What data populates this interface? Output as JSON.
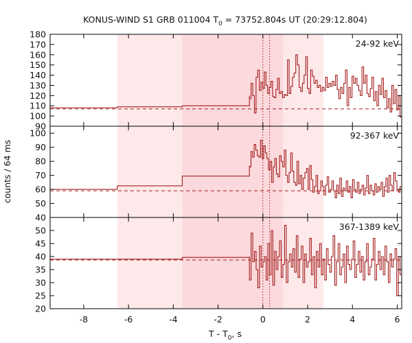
{
  "chart_data": {
    "type": "line",
    "title": {
      "prefix": "KONUS-WIND S1 GRB 011004 T",
      "sub": "0",
      "suffix": " = 73752.804s UT (20:29:12.804)"
    },
    "xlabel": {
      "main": "T - T",
      "sub": "0",
      "suffix": ", s"
    },
    "ylabel": "counts / 64 ms",
    "xlim": [
      -9.5,
      6.2
    ],
    "xticks": [
      -8,
      -6,
      -4,
      -2,
      0,
      2,
      4,
      6
    ],
    "shaded_intervals": [
      {
        "x": [
          -6.5,
          2.7
        ],
        "color": "#fde9ea"
      },
      {
        "x": [
          -3.6,
          0.9
        ],
        "color": "#fbd9dc"
      }
    ],
    "dotted_markers": [
      0.0,
      0.3
    ],
    "line_color": "#a31b1b",
    "panels": [
      {
        "label": "24-92 keV",
        "ylim": [
          90,
          180
        ],
        "yticks": [
          90,
          100,
          110,
          120,
          130,
          140,
          150,
          160,
          170,
          180
        ],
        "background": 107,
        "steps": [
          [
            -9.5,
            108
          ],
          [
            -6.5,
            109
          ],
          [
            -3.6,
            110
          ],
          [
            -0.6,
            120
          ]
        ],
        "series": [
          117,
          132,
          120,
          103,
          138,
          145,
          125,
          133,
          127,
          143,
          130,
          122,
          128,
          134,
          119,
          118,
          126,
          137,
          122,
          124,
          118,
          121,
          120,
          155,
          122,
          129,
          138,
          142,
          160,
          150,
          128,
          124,
          132,
          140,
          158,
          127,
          122,
          145,
          139,
          132,
          135,
          128,
          130,
          124,
          128,
          125,
          138,
          128,
          132,
          129,
          134,
          130,
          140,
          126,
          117,
          128,
          122,
          132,
          145,
          110,
          128,
          118,
          139,
          132,
          137,
          130,
          125,
          120,
          148,
          132,
          140,
          122,
          119,
          127,
          138,
          115,
          124,
          110,
          130,
          121,
          137,
          118,
          125,
          108,
          117,
          104,
          130,
          112,
          126,
          106,
          120,
          99
        ]
      },
      {
        "label": "92-367 keV",
        "ylim": [
          40,
          105
        ],
        "yticks": [
          40,
          50,
          60,
          70,
          80,
          90,
          100
        ],
        "background": 59,
        "steps": [
          [
            -9.5,
            60
          ],
          [
            -6.5,
            62.5
          ],
          [
            -3.6,
            69.5
          ],
          [
            -0.6,
            77
          ]
        ],
        "series": [
          76,
          87,
          83,
          92,
          88,
          84,
          83,
          95,
          82,
          91,
          86,
          82,
          74,
          80,
          65,
          76,
          82,
          71,
          69,
          84,
          80,
          76,
          88,
          70,
          65,
          72,
          86,
          73,
          65,
          63,
          80,
          64,
          70,
          60,
          68,
          72,
          75,
          60,
          77,
          67,
          58,
          62,
          70,
          57,
          59,
          66,
          62,
          56,
          63,
          69,
          58,
          60,
          66,
          59,
          54,
          63,
          57,
          68,
          55,
          61,
          59,
          66,
          58,
          62,
          54,
          67,
          60,
          58,
          65,
          57,
          60,
          63,
          56,
          61,
          70,
          57,
          63,
          59,
          56,
          64,
          58,
          62,
          60,
          65,
          55,
          62,
          68,
          58,
          70,
          63,
          59,
          72,
          66,
          60,
          58,
          62
        ]
      },
      {
        "label": "367-1389 keV",
        "ylim": [
          20,
          55
        ],
        "yticks": [
          20,
          25,
          30,
          35,
          40,
          45,
          50
        ],
        "background": 38.7,
        "steps": [
          [
            -9.5,
            39
          ],
          [
            -6.5,
            39
          ],
          [
            -3.6,
            39.7
          ],
          [
            -0.6,
            40
          ]
        ],
        "series": [
          31,
          49,
          38,
          42,
          35,
          28,
          44,
          36,
          38,
          40,
          31,
          45,
          33,
          50,
          29,
          42,
          35,
          40,
          46,
          32,
          37,
          52,
          30,
          38,
          41,
          36,
          43,
          34,
          48,
          32,
          39,
          44,
          30,
          41,
          36,
          38,
          47,
          33,
          40,
          28,
          42,
          36,
          45,
          33,
          39,
          31,
          43,
          37,
          34,
          40,
          48,
          29,
          38,
          45,
          33,
          36,
          41,
          30,
          44,
          37,
          35,
          39,
          46,
          32,
          37,
          42,
          34,
          40,
          31,
          38,
          45,
          33,
          36,
          39,
          47,
          31,
          37,
          42,
          35,
          40,
          33,
          44,
          38,
          30,
          41,
          36,
          39,
          43,
          25,
          40,
          33
        ]
      }
    ]
  }
}
